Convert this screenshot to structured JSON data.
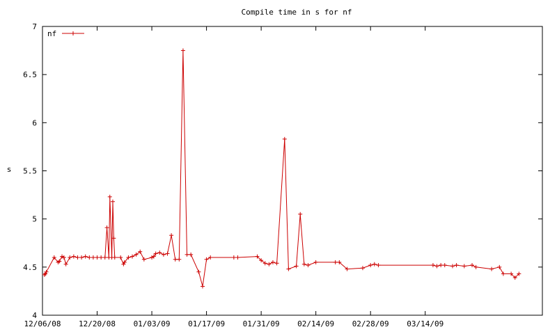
{
  "chart_data": {
    "type": "line",
    "title": "Compile time in s for nf",
    "xlabel": "",
    "ylabel": "s",
    "ylim": [
      4,
      7
    ],
    "xlim": [
      "12/06/08",
      "04/13/09"
    ],
    "grid": false,
    "legend_position": "top-left",
    "x_tick_labels": [
      "12/06/08",
      "12/20/08",
      "01/03/09",
      "01/17/09",
      "01/31/09",
      "02/14/09",
      "02/28/09",
      "03/14/09"
    ],
    "y_tick_labels": [
      "4",
      "4.5",
      "5",
      "5.5",
      "6",
      "6.5",
      "7"
    ],
    "series": [
      {
        "name": "nf",
        "color": "#cc0000",
        "points": [
          [
            "12/06/08 12:00",
            4.42
          ],
          [
            "12/06/08 18:00",
            4.43
          ],
          [
            "12/07/08",
            4.45
          ],
          [
            "12/09/08",
            4.6
          ],
          [
            "12/10/08",
            4.55
          ],
          [
            "12/10/08 08:00",
            4.56
          ],
          [
            "12/11/08",
            4.61
          ],
          [
            "12/11/08 12:00",
            4.6
          ],
          [
            "12/12/08",
            4.53
          ],
          [
            "12/13/08",
            4.6
          ],
          [
            "12/14/08",
            4.61
          ],
          [
            "12/15/08",
            4.6
          ],
          [
            "12/16/08",
            4.6
          ],
          [
            "12/17/08",
            4.61
          ],
          [
            "12/18/08",
            4.6
          ],
          [
            "12/19/08",
            4.6
          ],
          [
            "12/20/08",
            4.6
          ],
          [
            "12/21/08",
            4.6
          ],
          [
            "12/22/08",
            4.6
          ],
          [
            "12/22/08 12:00",
            4.91
          ],
          [
            "12/23/08",
            4.6
          ],
          [
            "12/23/08 06:00",
            5.23
          ],
          [
            "12/23/08 18:00",
            4.6
          ],
          [
            "12/24/08",
            5.18
          ],
          [
            "12/24/08 06:00",
            4.8
          ],
          [
            "12/24/08 12:00",
            4.6
          ],
          [
            "12/26/08",
            4.6
          ],
          [
            "12/26/08 18:00",
            4.53
          ],
          [
            "12/27/08",
            4.55
          ],
          [
            "12/28/08",
            4.6
          ],
          [
            "12/29/08",
            4.61
          ],
          [
            "12/30/08",
            4.63
          ],
          [
            "12/31/08",
            4.66
          ],
          [
            "01/01/09",
            4.58
          ],
          [
            "01/03/09",
            4.6
          ],
          [
            "01/03/09 12:00",
            4.61
          ],
          [
            "01/04/09",
            4.64
          ],
          [
            "01/05/09",
            4.65
          ],
          [
            "01/06/09",
            4.63
          ],
          [
            "01/07/09",
            4.64
          ],
          [
            "01/08/09",
            4.83
          ],
          [
            "01/09/09",
            4.58
          ],
          [
            "01/10/09",
            4.58
          ],
          [
            "01/11/09",
            6.75
          ],
          [
            "01/12/09",
            4.63
          ],
          [
            "01/13/09",
            4.63
          ],
          [
            "01/15/09",
            4.45
          ],
          [
            "01/16/09",
            4.3
          ],
          [
            "01/17/09",
            4.58
          ],
          [
            "01/18/09",
            4.6
          ],
          [
            "01/24/09",
            4.6
          ],
          [
            "01/25/09",
            4.6
          ],
          [
            "01/30/09",
            4.61
          ],
          [
            "01/31/09",
            4.57
          ],
          [
            "02/01/09",
            4.54
          ],
          [
            "02/02/09",
            4.53
          ],
          [
            "02/03/09",
            4.55
          ],
          [
            "02/04/09",
            4.54
          ],
          [
            "02/06/09",
            5.83
          ],
          [
            "02/07/09",
            4.48
          ],
          [
            "02/09/09",
            4.51
          ],
          [
            "02/10/09",
            5.05
          ],
          [
            "02/11/09",
            4.53
          ],
          [
            "02/12/09",
            4.52
          ],
          [
            "02/14/09",
            4.55
          ],
          [
            "02/19/09",
            4.55
          ],
          [
            "02/20/09",
            4.55
          ],
          [
            "02/22/09",
            4.48
          ],
          [
            "02/26/09",
            4.49
          ],
          [
            "02/28/09",
            4.52
          ],
          [
            "03/01/09",
            4.53
          ],
          [
            "03/02/09",
            4.52
          ],
          [
            "03/16/09",
            4.52
          ],
          [
            "03/17/09",
            4.51
          ],
          [
            "03/18/09",
            4.52
          ],
          [
            "03/19/09",
            4.52
          ],
          [
            "03/21/09",
            4.51
          ],
          [
            "03/22/09",
            4.52
          ],
          [
            "03/24/09",
            4.51
          ],
          [
            "03/26/09",
            4.52
          ],
          [
            "03/27/09",
            4.5
          ],
          [
            "03/31/09",
            4.48
          ],
          [
            "04/02/09",
            4.5
          ],
          [
            "04/03/09",
            4.43
          ],
          [
            "04/05/09",
            4.43
          ],
          [
            "04/06/09",
            4.39
          ],
          [
            "04/07/09",
            4.43
          ]
        ]
      }
    ]
  }
}
